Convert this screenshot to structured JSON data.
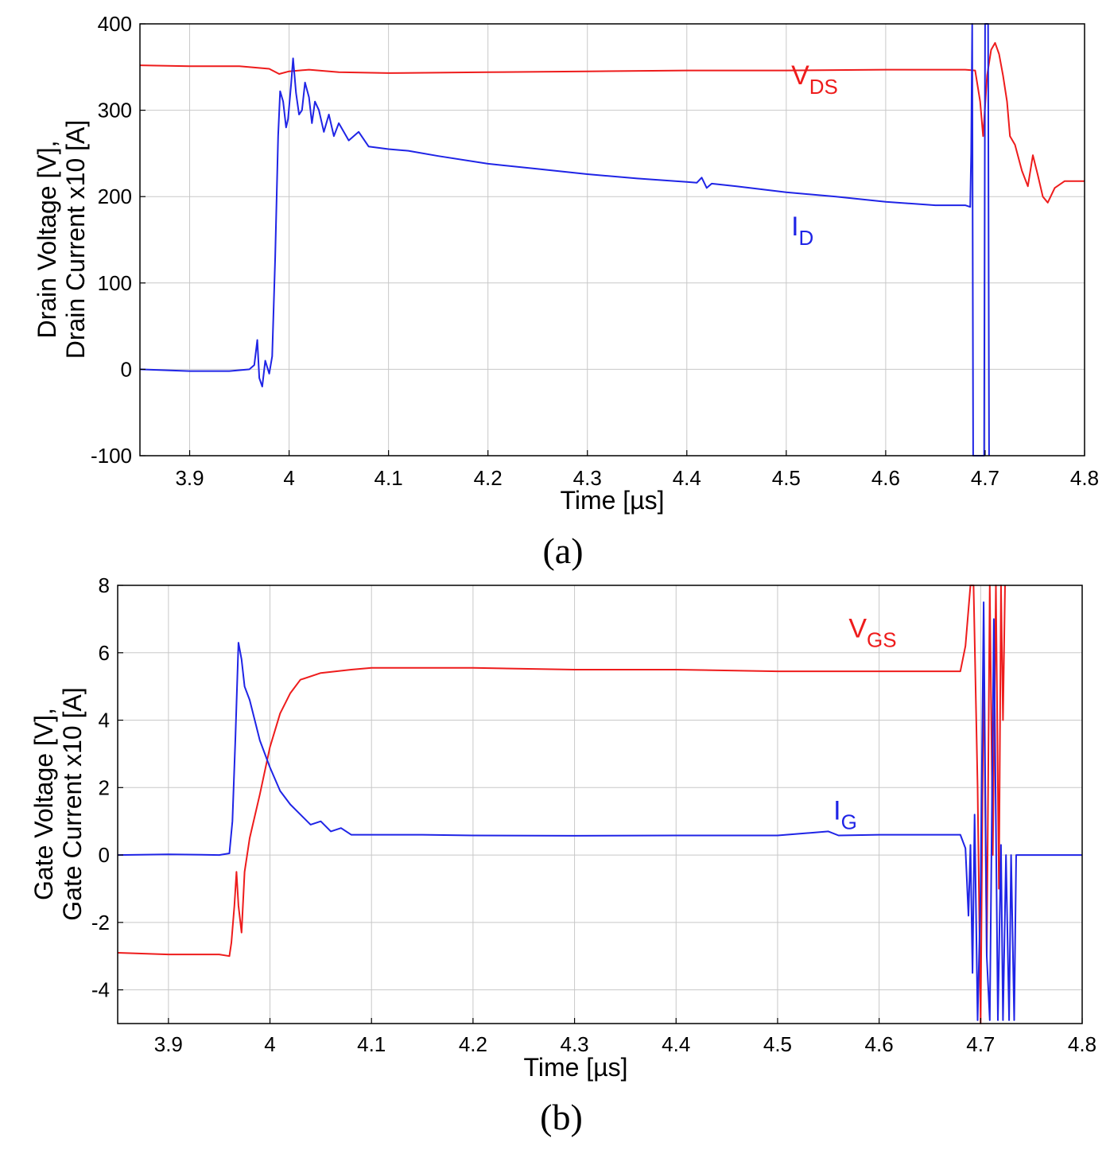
{
  "chart_data": [
    {
      "id": "a",
      "type": "line",
      "caption": "(a)",
      "xlabel": "Time [µs]",
      "ylabel_line1": "Drain Voltage [V],",
      "ylabel_line2": "Drain Current x10 [A]",
      "xlim": [
        3.85,
        4.8
      ],
      "ylim": [
        -100,
        400
      ],
      "grid": true,
      "xticks": [
        {
          "value": 3.9,
          "label": "3.9"
        },
        {
          "value": 4.0,
          "label": "4"
        },
        {
          "value": 4.1,
          "label": "4.1"
        },
        {
          "value": 4.2,
          "label": "4.2"
        },
        {
          "value": 4.3,
          "label": "4.3"
        },
        {
          "value": 4.4,
          "label": "4.4"
        },
        {
          "value": 4.5,
          "label": "4.5"
        },
        {
          "value": 4.6,
          "label": "4.6"
        },
        {
          "value": 4.7,
          "label": "4.7"
        },
        {
          "value": 4.8,
          "label": "4.8"
        }
      ],
      "yticks": [
        {
          "value": -100,
          "label": "-100"
        },
        {
          "value": 0,
          "label": "0"
        },
        {
          "value": 100,
          "label": "100"
        },
        {
          "value": 200,
          "label": "200"
        },
        {
          "value": 300,
          "label": "300"
        },
        {
          "value": 400,
          "label": "400"
        }
      ],
      "series": [
        {
          "name": "V_DS",
          "label_main": "V",
          "label_sub": "DS",
          "color": "#ee1c1c",
          "label_at": [
            4.505,
            330
          ],
          "points": [
            [
              3.85,
              352
            ],
            [
              3.9,
              351
            ],
            [
              3.95,
              351
            ],
            [
              3.98,
              348
            ],
            [
              3.99,
              342
            ],
            [
              4.0,
              345
            ],
            [
              4.02,
              347
            ],
            [
              4.05,
              344
            ],
            [
              4.1,
              343
            ],
            [
              4.2,
              344
            ],
            [
              4.3,
              345
            ],
            [
              4.4,
              346
            ],
            [
              4.5,
              346
            ],
            [
              4.6,
              347
            ],
            [
              4.68,
              347
            ],
            [
              4.69,
              346
            ],
            [
              4.695,
              310
            ],
            [
              4.698,
              270
            ],
            [
              4.702,
              340
            ],
            [
              4.706,
              370
            ],
            [
              4.71,
              378
            ],
            [
              4.714,
              365
            ],
            [
              4.718,
              340
            ],
            [
              4.722,
              310
            ],
            [
              4.725,
              270
            ],
            [
              4.73,
              260
            ],
            [
              4.737,
              230
            ],
            [
              4.743,
              212
            ],
            [
              4.748,
              248
            ],
            [
              4.753,
              225
            ],
            [
              4.758,
              200
            ],
            [
              4.763,
              193
            ],
            [
              4.77,
              210
            ],
            [
              4.78,
              218
            ],
            [
              4.8,
              218
            ]
          ]
        },
        {
          "name": "I_D",
          "label_main": "I",
          "label_sub": "D",
          "color": "#1f24e6",
          "label_at": [
            4.505,
            155
          ],
          "points": [
            [
              3.85,
              0
            ],
            [
              3.9,
              -2
            ],
            [
              3.94,
              -2
            ],
            [
              3.96,
              0
            ],
            [
              3.965,
              5
            ],
            [
              3.968,
              34
            ],
            [
              3.97,
              -10
            ],
            [
              3.973,
              -20
            ],
            [
              3.976,
              10
            ],
            [
              3.98,
              -5
            ],
            [
              3.983,
              15
            ],
            [
              3.986,
              130
            ],
            [
              3.989,
              270
            ],
            [
              3.991,
              322
            ],
            [
              3.994,
              310
            ],
            [
              3.997,
              280
            ],
            [
              3.999,
              290
            ],
            [
              4.002,
              330
            ],
            [
              4.004,
              360
            ],
            [
              4.007,
              320
            ],
            [
              4.01,
              295
            ],
            [
              4.013,
              300
            ],
            [
              4.016,
              332
            ],
            [
              4.02,
              315
            ],
            [
              4.023,
              285
            ],
            [
              4.026,
              310
            ],
            [
              4.03,
              300
            ],
            [
              4.035,
              275
            ],
            [
              4.04,
              295
            ],
            [
              4.045,
              270
            ],
            [
              4.05,
              285
            ],
            [
              4.06,
              265
            ],
            [
              4.07,
              275
            ],
            [
              4.08,
              258
            ],
            [
              4.1,
              255
            ],
            [
              4.12,
              253
            ],
            [
              4.15,
              247
            ],
            [
              4.2,
              238
            ],
            [
              4.25,
              232
            ],
            [
              4.3,
              226
            ],
            [
              4.35,
              221
            ],
            [
              4.4,
              217
            ],
            [
              4.41,
              216
            ],
            [
              4.415,
              222
            ],
            [
              4.42,
              210
            ],
            [
              4.425,
              215
            ],
            [
              4.45,
              212
            ],
            [
              4.5,
              205
            ],
            [
              4.55,
              200
            ],
            [
              4.6,
              194
            ],
            [
              4.65,
              190
            ],
            [
              4.68,
              190
            ],
            [
              4.685,
              188
            ],
            [
              4.686,
              250
            ],
            [
              4.687,
              400
            ],
            [
              4.688,
              -100
            ],
            [
              4.69,
              -100
            ],
            [
              4.695,
              -100
            ],
            [
              4.699,
              -100
            ],
            [
              4.7,
              400
            ],
            [
              4.703,
              400
            ],
            [
              4.704,
              -100
            ]
          ]
        }
      ]
    },
    {
      "id": "b",
      "type": "line",
      "caption": "(b)",
      "xlabel": "Time [µs]",
      "ylabel_line1": "Gate Voltage [V],",
      "ylabel_line2": "Gate Current x10 [A]",
      "xlim": [
        3.85,
        4.8
      ],
      "ylim": [
        -5,
        8
      ],
      "grid": true,
      "xticks": [
        {
          "value": 3.9,
          "label": "3.9"
        },
        {
          "value": 4.0,
          "label": "4"
        },
        {
          "value": 4.1,
          "label": "4.1"
        },
        {
          "value": 4.2,
          "label": "4.2"
        },
        {
          "value": 4.3,
          "label": "4.3"
        },
        {
          "value": 4.4,
          "label": "4.4"
        },
        {
          "value": 4.5,
          "label": "4.5"
        },
        {
          "value": 4.6,
          "label": "4.6"
        },
        {
          "value": 4.7,
          "label": "4.7"
        },
        {
          "value": 4.8,
          "label": "4.8"
        }
      ],
      "yticks": [
        {
          "value": -4,
          "label": "-4"
        },
        {
          "value": -2,
          "label": "-2"
        },
        {
          "value": 0,
          "label": "0"
        },
        {
          "value": 2,
          "label": "2"
        },
        {
          "value": 4,
          "label": "4"
        },
        {
          "value": 6,
          "label": "6"
        },
        {
          "value": 8,
          "label": "8"
        }
      ],
      "series": [
        {
          "name": "V_GS",
          "label_main": "V",
          "label_sub": "GS",
          "color": "#ee1c1c",
          "label_at": [
            4.57,
            6.45
          ],
          "points": [
            [
              3.85,
              -2.9
            ],
            [
              3.9,
              -2.95
            ],
            [
              3.95,
              -2.95
            ],
            [
              3.96,
              -3.0
            ],
            [
              3.962,
              -2.6
            ],
            [
              3.965,
              -1.5
            ],
            [
              3.967,
              -0.5
            ],
            [
              3.969,
              -1.5
            ],
            [
              3.972,
              -2.3
            ],
            [
              3.975,
              -0.5
            ],
            [
              3.98,
              0.5
            ],
            [
              3.99,
              1.8
            ],
            [
              4.0,
              3.2
            ],
            [
              4.01,
              4.2
            ],
            [
              4.02,
              4.8
            ],
            [
              4.03,
              5.2
            ],
            [
              4.05,
              5.4
            ],
            [
              4.08,
              5.5
            ],
            [
              4.1,
              5.55
            ],
            [
              4.2,
              5.55
            ],
            [
              4.3,
              5.5
            ],
            [
              4.4,
              5.5
            ],
            [
              4.5,
              5.45
            ],
            [
              4.6,
              5.45
            ],
            [
              4.68,
              5.45
            ],
            [
              4.685,
              6.2
            ],
            [
              4.69,
              8
            ],
            [
              4.693,
              8
            ],
            [
              4.697,
              2
            ],
            [
              4.7,
              -5
            ],
            [
              4.703,
              6
            ],
            [
              4.706,
              -3
            ],
            [
              4.709,
              8
            ],
            [
              4.712,
              0
            ],
            [
              4.715,
              8
            ],
            [
              4.718,
              -1
            ],
            [
              4.72,
              8
            ],
            [
              4.722,
              4
            ],
            [
              4.724,
              8
            ]
          ]
        },
        {
          "name": "I_G",
          "label_main": "I",
          "label_sub": "G",
          "color": "#1f24e6",
          "label_at": [
            4.555,
            1.05
          ],
          "points": [
            [
              3.85,
              0.0
            ],
            [
              3.9,
              0.02
            ],
            [
              3.95,
              0.0
            ],
            [
              3.96,
              0.05
            ],
            [
              3.963,
              1.0
            ],
            [
              3.966,
              3.5
            ],
            [
              3.969,
              6.3
            ],
            [
              3.972,
              5.8
            ],
            [
              3.975,
              5.0
            ],
            [
              3.98,
              4.6
            ],
            [
              3.99,
              3.4
            ],
            [
              4.0,
              2.6
            ],
            [
              4.01,
              1.9
            ],
            [
              4.02,
              1.5
            ],
            [
              4.03,
              1.2
            ],
            [
              4.04,
              0.9
            ],
            [
              4.05,
              1.0
            ],
            [
              4.06,
              0.7
            ],
            [
              4.07,
              0.8
            ],
            [
              4.08,
              0.6
            ],
            [
              4.1,
              0.6
            ],
            [
              4.15,
              0.6
            ],
            [
              4.2,
              0.58
            ],
            [
              4.3,
              0.57
            ],
            [
              4.4,
              0.58
            ],
            [
              4.5,
              0.58
            ],
            [
              4.55,
              0.7
            ],
            [
              4.56,
              0.58
            ],
            [
              4.6,
              0.6
            ],
            [
              4.68,
              0.6
            ],
            [
              4.685,
              0.2
            ],
            [
              4.688,
              -1.8
            ],
            [
              4.69,
              0.3
            ],
            [
              4.692,
              -3.5
            ],
            [
              4.694,
              1.2
            ],
            [
              4.697,
              -4.9
            ],
            [
              4.7,
              -1.0
            ],
            [
              4.703,
              7.5
            ],
            [
              4.706,
              -3.0
            ],
            [
              4.709,
              -4.9
            ],
            [
              4.713,
              7.0
            ],
            [
              4.717,
              -4.9
            ],
            [
              4.72,
              0.3
            ],
            [
              4.722,
              -4.9
            ],
            [
              4.725,
              0.0
            ],
            [
              4.728,
              -4.9
            ],
            [
              4.73,
              0.0
            ],
            [
              4.733,
              -4.9
            ],
            [
              4.735,
              0.0
            ],
            [
              4.75,
              0.0
            ],
            [
              4.8,
              0.0
            ]
          ]
        }
      ]
    }
  ]
}
